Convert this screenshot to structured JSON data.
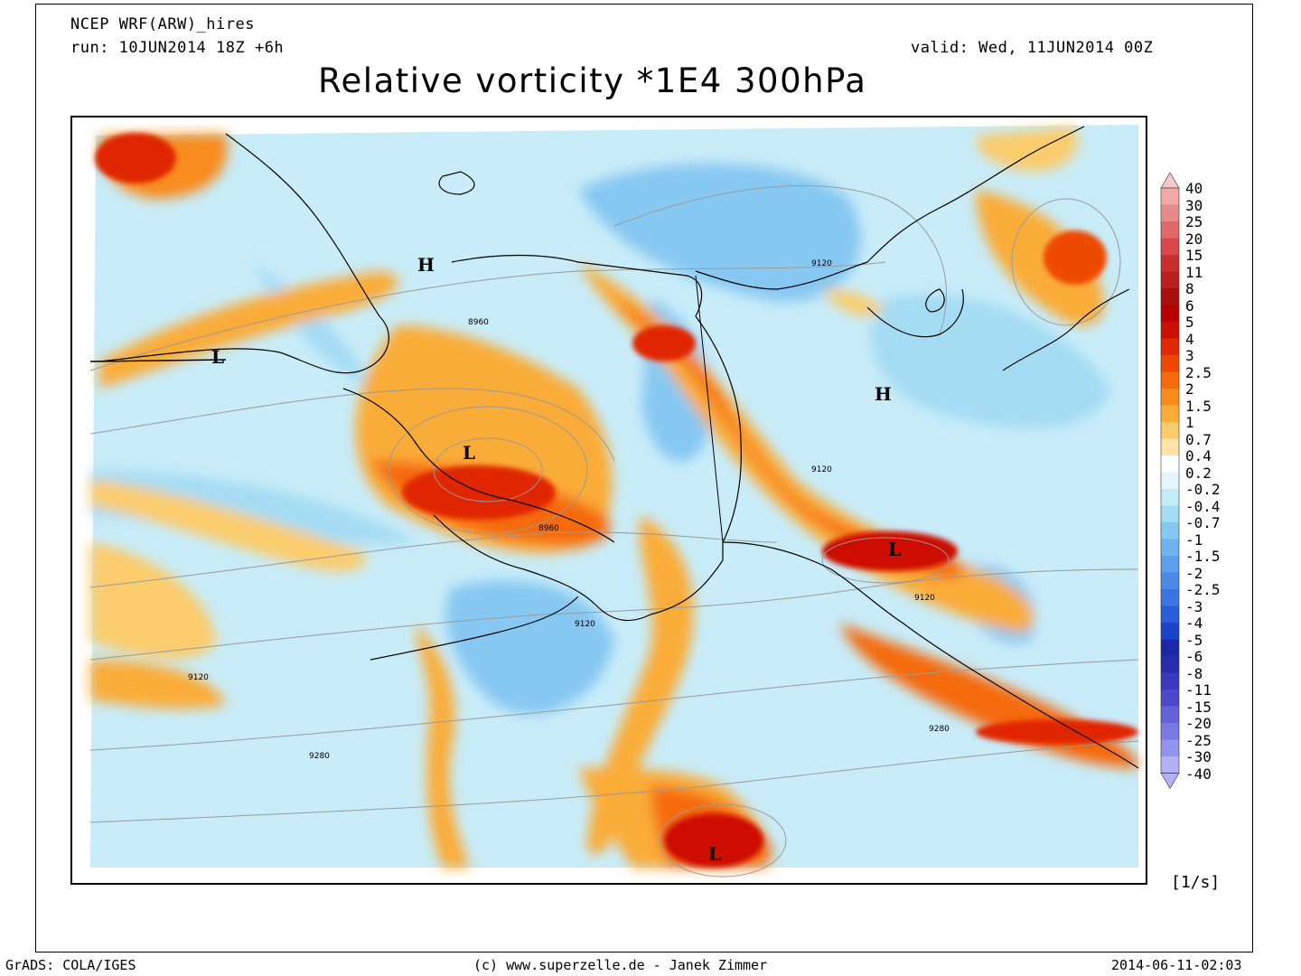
{
  "header": {
    "model": "NCEP WRF(ARW)_hires",
    "run": "run: 10JUN2014 18Z +6h",
    "valid": "valid: Wed, 11JUN2014 00Z",
    "title": "Relative vorticity *1E4 300hPa"
  },
  "map": {
    "pressure_labels": [
      {
        "text": "H",
        "name": "high-pressure-label-north-bering"
      },
      {
        "text": "L",
        "name": "low-pressure-label-siberia"
      },
      {
        "text": "L",
        "name": "low-pressure-label-alaska"
      },
      {
        "text": "H",
        "name": "high-pressure-label-canada"
      },
      {
        "text": "L",
        "name": "low-pressure-label-gulf-coast"
      },
      {
        "text": "L",
        "name": "low-pressure-label-pacific"
      }
    ],
    "contour_labels": [
      "9120",
      "8960",
      "8960",
      "9120",
      "9120",
      "9120",
      "9120",
      "9280",
      "9280"
    ]
  },
  "colorbar": {
    "labels": [
      "40",
      "30",
      "25",
      "20",
      "15",
      "11",
      "8",
      "6",
      "5",
      "4",
      "3",
      "2.5",
      "2",
      "1.5",
      "1",
      "0.7",
      "0.4",
      "0.2",
      "-0.2",
      "-0.4",
      "-0.7",
      "-1",
      "-1.5",
      "-2",
      "-2.5",
      "-3",
      "-4",
      "-5",
      "-6",
      "-8",
      "-11",
      "-15",
      "-20",
      "-25",
      "-30",
      "-40"
    ],
    "colors": [
      "#f7c8c8",
      "#f0a8a8",
      "#e88a8a",
      "#e06a6a",
      "#d84848",
      "#c83030",
      "#b82020",
      "#a81010",
      "#b80000",
      "#cc1000",
      "#e02800",
      "#ee4800",
      "#f56a0a",
      "#f88c1a",
      "#faac38",
      "#fbcc6c",
      "#fde4a4",
      "#ffffff",
      "#e4f6fc",
      "#c4ecf8",
      "#a4dcf4",
      "#86c8f2",
      "#6eb2ee",
      "#5a9eec",
      "#4a8ae6",
      "#3a74e0",
      "#2a5ed8",
      "#1c44c8",
      "#1a28a8",
      "#2a2cb0",
      "#3838c0",
      "#4c48cc",
      "#6262d8",
      "#7a78e4",
      "#9494ee",
      "#b4b0f6"
    ],
    "units": "[1/s]"
  },
  "footer": {
    "left": "GrADS: COLA/IGES",
    "center": "(c) www.superzelle.de - Janek Zimmer",
    "right": "2014-06-11-02:03"
  }
}
